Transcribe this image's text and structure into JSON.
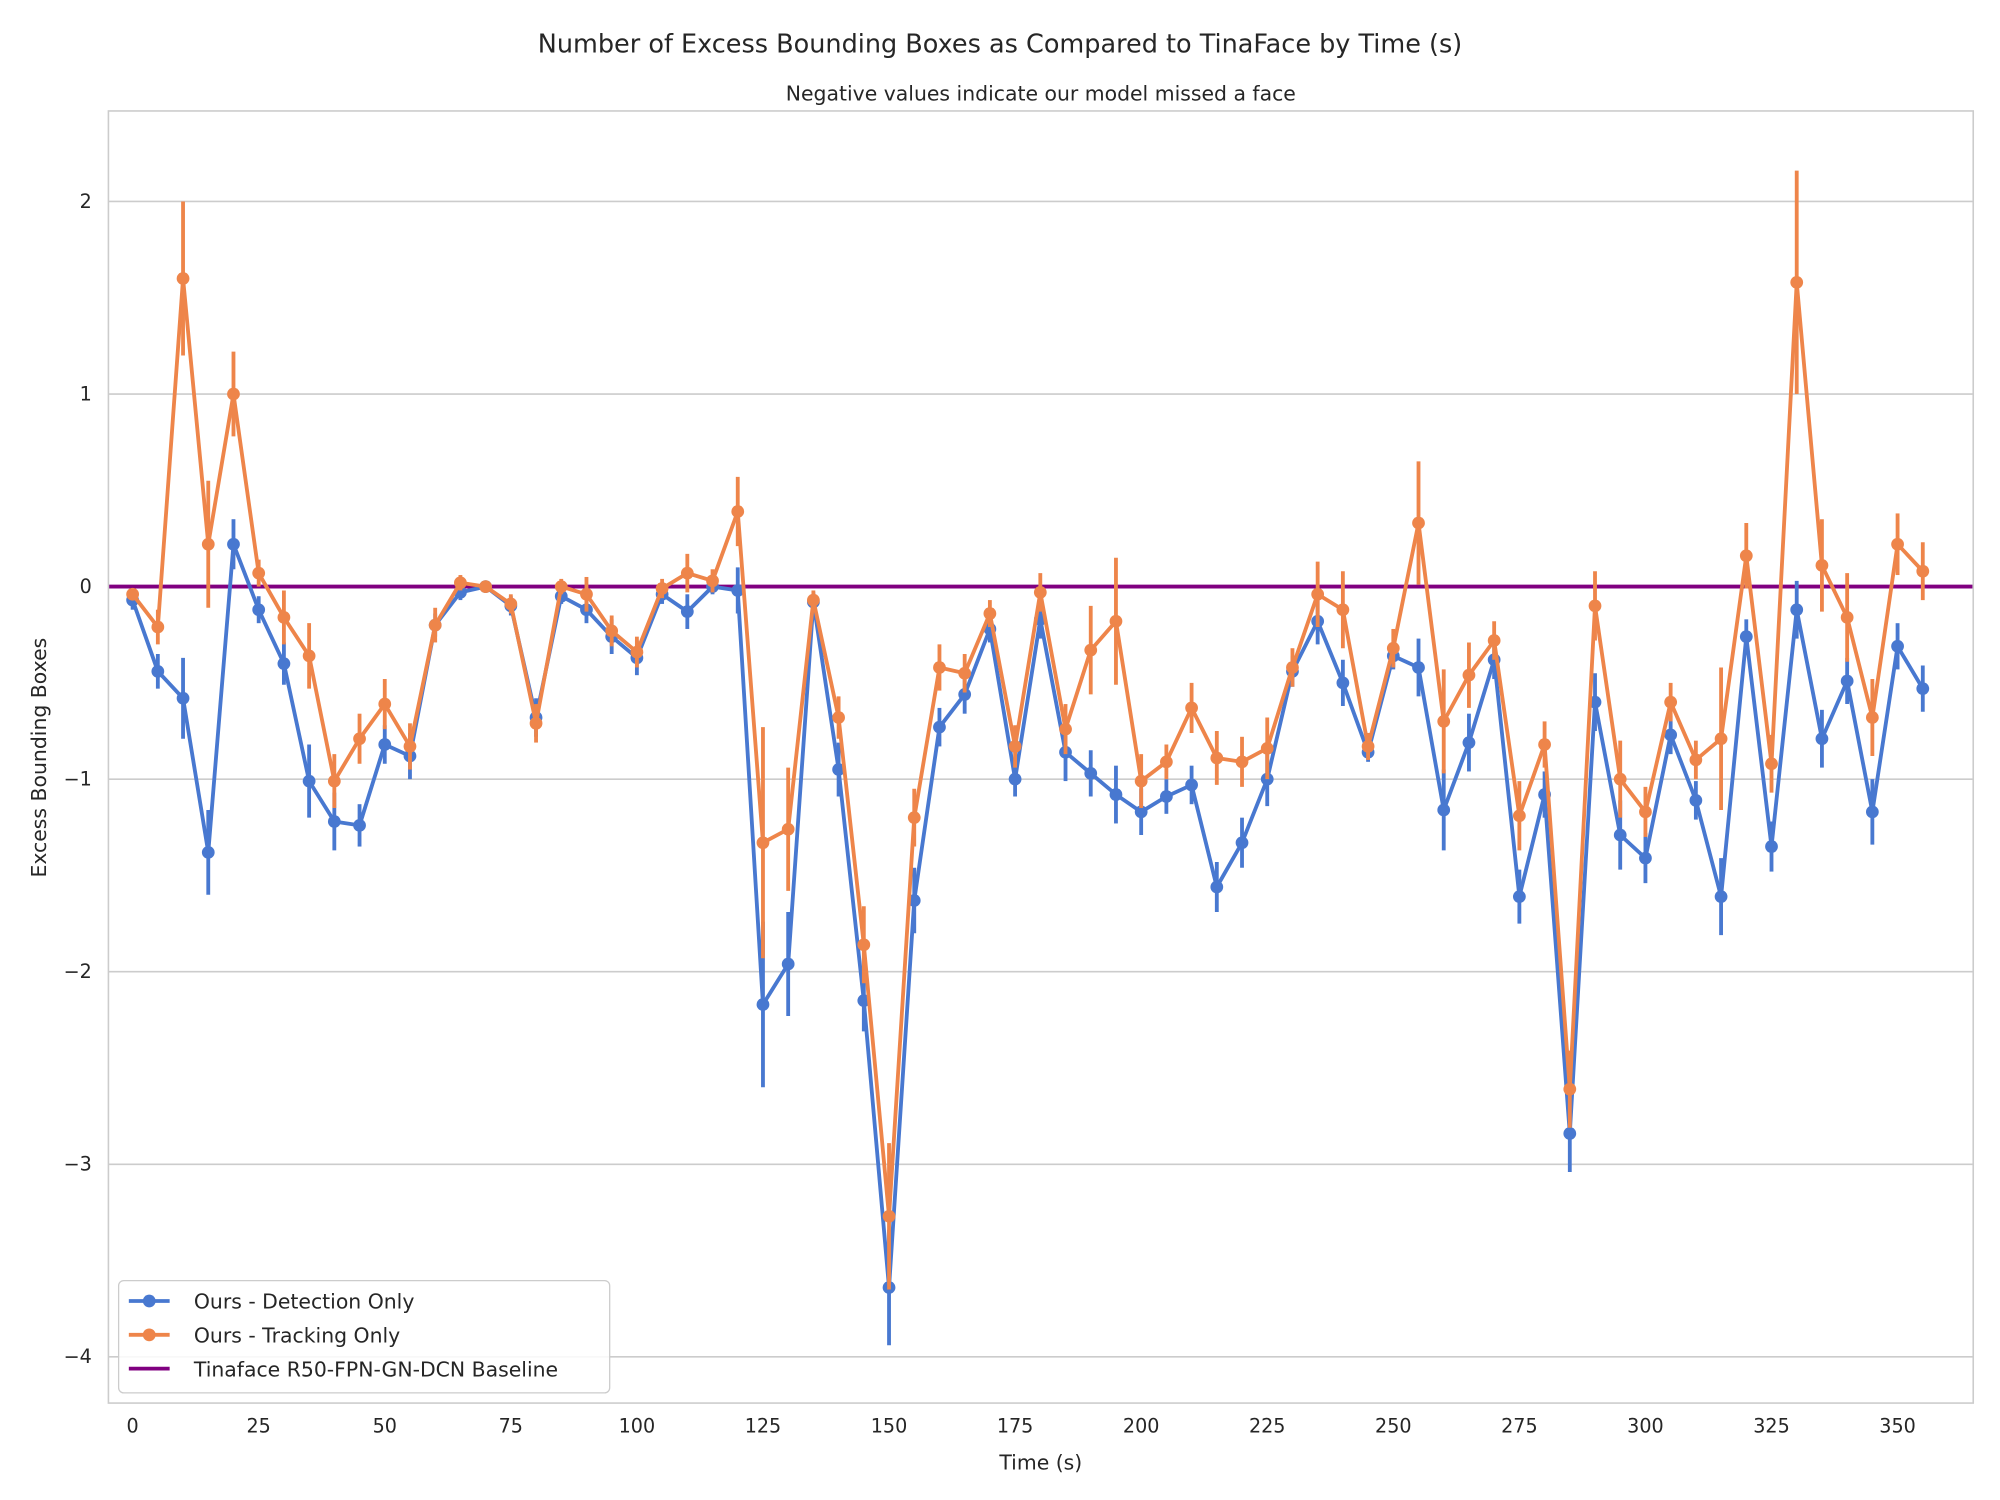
{
  "chart_data": {
    "type": "line",
    "title": "Number of Excess Bounding Boxes as Compared to TinaFace by Time (s)",
    "subtitle": "Negative values indicate our model missed a face",
    "xlabel": "Time (s)",
    "ylabel": "Excess Bounding Boxes",
    "xlim": [
      -4.8,
      365
    ],
    "ylim": [
      -4.24,
      2.47
    ],
    "xticks": [
      0,
      25,
      50,
      75,
      100,
      125,
      150,
      175,
      200,
      225,
      250,
      275,
      300,
      325,
      350
    ],
    "yticks": [
      -4,
      -3,
      -2,
      -1,
      0,
      1,
      2
    ],
    "ytick_labels": [
      "−4",
      "−3",
      "−2",
      "−1",
      "0",
      "1",
      "2"
    ],
    "grid": "horizontal",
    "legend_position": "bottom-left",
    "x": [
      0,
      5,
      10,
      15,
      20,
      25,
      30,
      35,
      40,
      45,
      50,
      55,
      60,
      65,
      70,
      75,
      80,
      85,
      90,
      95,
      100,
      105,
      110,
      115,
      120,
      125,
      130,
      135,
      140,
      145,
      150,
      155,
      160,
      165,
      170,
      175,
      180,
      185,
      190,
      195,
      200,
      205,
      210,
      215,
      220,
      225,
      230,
      235,
      240,
      245,
      250,
      255,
      260,
      265,
      270,
      275,
      280,
      285,
      290,
      295,
      300,
      305,
      310,
      315,
      320,
      325,
      330,
      335,
      340,
      345,
      350,
      355
    ],
    "series": [
      {
        "name": "Ours - Detection Only",
        "color": "#4878d0",
        "marker": "circle",
        "values": [
          -0.07,
          -0.44,
          -0.58,
          -1.38,
          0.22,
          -0.12,
          -0.4,
          -1.01,
          -1.22,
          -1.24,
          -0.82,
          -0.88,
          -0.2,
          -0.03,
          0.0,
          -0.1,
          -0.68,
          -0.05,
          -0.12,
          -0.26,
          -0.37,
          -0.04,
          -0.13,
          0.0,
          -0.02,
          -2.17,
          -1.96,
          -0.08,
          -0.95,
          -2.15,
          -3.64,
          -1.63,
          -0.73,
          -0.56,
          -0.22,
          -1.0,
          -0.17,
          -0.86,
          -0.97,
          -1.08,
          -1.17,
          -1.09,
          -1.03,
          -1.56,
          -1.33,
          -1.0,
          -0.44,
          -0.18,
          -0.5,
          -0.86,
          -0.36,
          -0.42,
          -1.16,
          -0.81,
          -0.38,
          -1.61,
          -1.08,
          -2.84,
          -0.6,
          -1.29,
          -1.41,
          -0.77,
          -1.11,
          -1.61,
          -0.26,
          -1.35,
          -0.12,
          -0.79,
          -0.49,
          -1.17,
          -0.31,
          -0.53
        ],
        "error": [
          0.05,
          0.09,
          0.21,
          0.22,
          0.13,
          0.07,
          0.11,
          0.19,
          0.15,
          0.11,
          0.1,
          0.12,
          0.06,
          0.04,
          0.02,
          0.05,
          0.1,
          0.04,
          0.07,
          0.09,
          0.09,
          0.05,
          0.09,
          0.04,
          0.12,
          0.43,
          0.27,
          0.05,
          0.14,
          0.16,
          0.3,
          0.17,
          0.1,
          0.1,
          0.07,
          0.09,
          0.1,
          0.15,
          0.12,
          0.15,
          0.12,
          0.09,
          0.1,
          0.13,
          0.13,
          0.14,
          0.08,
          0.12,
          0.12,
          0.05,
          0.07,
          0.15,
          0.21,
          0.15,
          0.1,
          0.14,
          0.12,
          0.2,
          0.15,
          0.18,
          0.13,
          0.1,
          0.1,
          0.2,
          0.09,
          0.13,
          0.15,
          0.15,
          0.12,
          0.17,
          0.12,
          0.12
        ]
      },
      {
        "name": "Ours - Tracking Only",
        "color": "#ee854a",
        "marker": "circle",
        "values": [
          -0.04,
          -0.21,
          1.6,
          0.22,
          1.0,
          0.07,
          -0.16,
          -0.36,
          -1.01,
          -0.79,
          -0.61,
          -0.83,
          -0.2,
          0.02,
          0.0,
          -0.09,
          -0.71,
          0.0,
          -0.04,
          -0.23,
          -0.34,
          -0.01,
          0.07,
          0.03,
          0.39,
          -1.33,
          -1.26,
          -0.07,
          -0.68,
          -1.86,
          -3.27,
          -1.2,
          -0.42,
          -0.45,
          -0.14,
          -0.83,
          -0.03,
          -0.74,
          -0.33,
          -0.18,
          -1.01,
          -0.91,
          -0.63,
          -0.89,
          -0.91,
          -0.84,
          -0.42,
          -0.04,
          -0.12,
          -0.83,
          -0.32,
          0.33,
          -0.7,
          -0.46,
          -0.28,
          -1.19,
          -0.82,
          -2.61,
          -0.1,
          -1.0,
          -1.17,
          -0.6,
          -0.9,
          -0.79,
          0.16,
          -0.92,
          1.58,
          0.11,
          -0.16,
          -0.68,
          0.22,
          0.08
        ],
        "error": [
          0.03,
          0.09,
          0.4,
          0.33,
          0.22,
          0.07,
          0.14,
          0.17,
          0.14,
          0.13,
          0.13,
          0.12,
          0.09,
          0.04,
          0.02,
          0.05,
          0.1,
          0.04,
          0.09,
          0.08,
          0.08,
          0.05,
          0.1,
          0.06,
          0.18,
          0.6,
          0.32,
          0.05,
          0.11,
          0.2,
          0.38,
          0.15,
          0.12,
          0.1,
          0.07,
          0.11,
          0.1,
          0.13,
          0.23,
          0.33,
          0.14,
          0.09,
          0.13,
          0.14,
          0.13,
          0.16,
          0.1,
          0.17,
          0.2,
          0.07,
          0.1,
          0.32,
          0.27,
          0.17,
          0.1,
          0.18,
          0.12,
          0.2,
          0.18,
          0.2,
          0.13,
          0.1,
          0.1,
          0.37,
          0.17,
          0.15,
          0.58,
          0.24,
          0.23,
          0.2,
          0.16,
          0.15
        ]
      },
      {
        "name": "Tinaface R50-FPN-GN-DCN Baseline",
        "color": "#800080",
        "marker": "none",
        "values": "constant 0"
      }
    ]
  }
}
